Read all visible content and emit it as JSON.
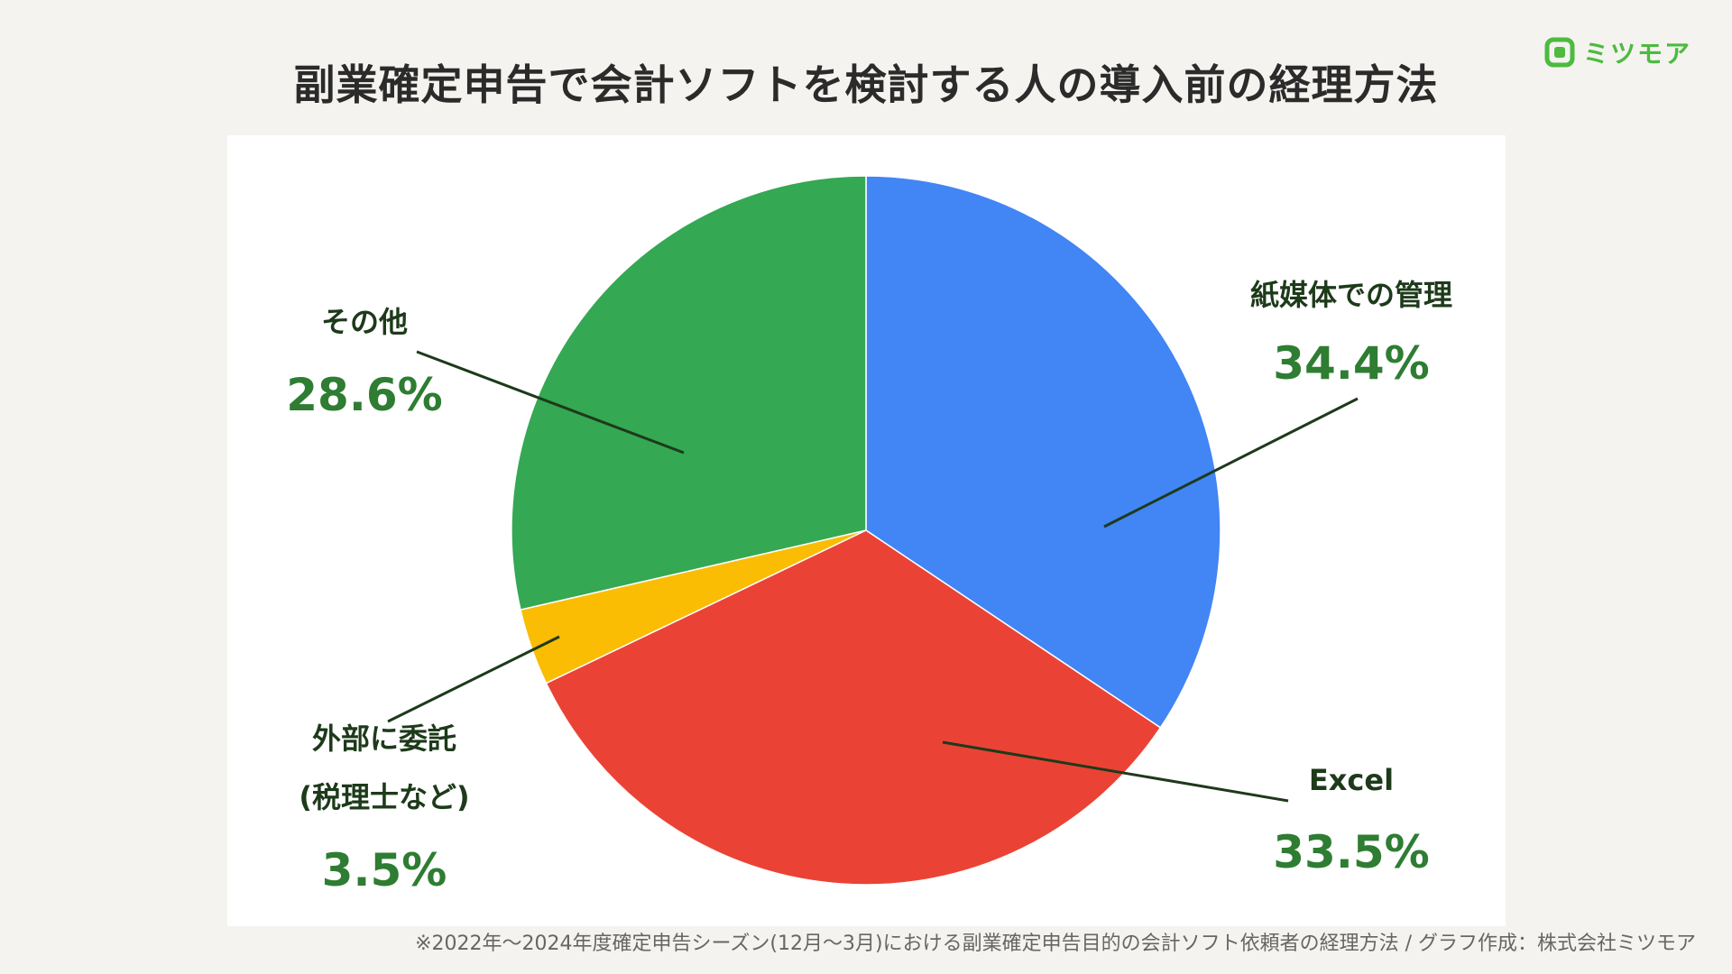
{
  "title": "副業確定申告で会計ソフトを検討する人の導入前の経理方法",
  "logo": {
    "text": "ミツモア",
    "icon": "mitsumore-logo-icon",
    "color": "#4cbb3f"
  },
  "footnote": "※2022年〜2024年度確定申告シーズン(12月〜3月)における副業確定申告目的の会計ソフト依頼者の経理方法 / グラフ作成：株式会社ミツモア",
  "chart_data": {
    "type": "pie",
    "title": "副業確定申告で会計ソフトを検討する人の導入前の経理方法",
    "unit": "%",
    "start": "12 o'clock, clockwise",
    "slices": [
      {
        "label": "紙媒体での管理",
        "value": 34.4,
        "pct_label": "34.4%",
        "color": "#4285f4"
      },
      {
        "label": "Excel",
        "value": 33.5,
        "pct_label": "33.5%",
        "color": "#ea4335"
      },
      {
        "label": "外部に委託\n(税理士など)",
        "label_lines": [
          "外部に委託",
          "(税理士など)"
        ],
        "value": 3.5,
        "pct_label": "3.5%",
        "color": "#fbbc04"
      },
      {
        "label": "その他",
        "value": 28.6,
        "pct_label": "28.6%",
        "color": "#34a853"
      }
    ]
  }
}
